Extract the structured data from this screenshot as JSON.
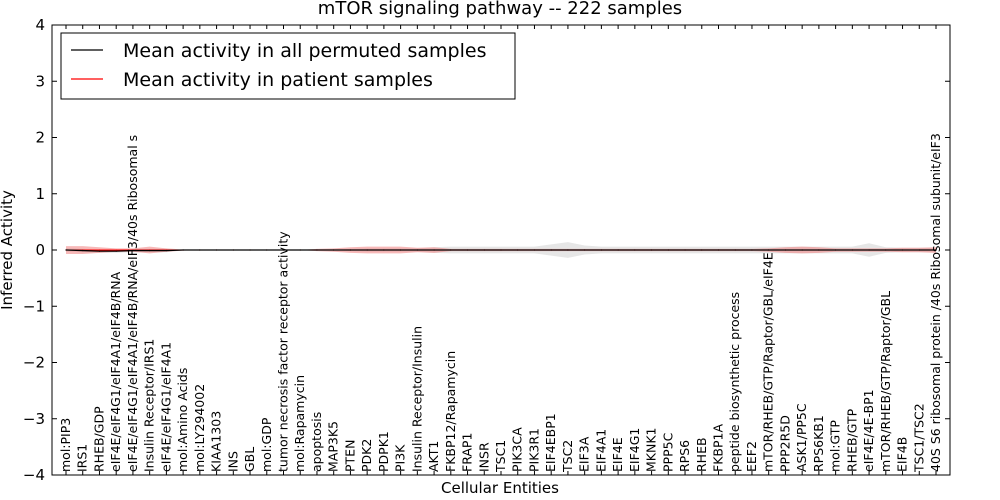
{
  "chart_data": {
    "type": "line",
    "title": "mTOR signaling pathway -- 222 samples",
    "xlabel": "Cellular Entities",
    "ylabel": "Inferred Activity",
    "ylim": [
      -4,
      4
    ],
    "yticks": [
      4,
      3,
      2,
      1,
      0,
      -1,
      -2,
      -3,
      -4
    ],
    "ytick_labels": [
      "4",
      "3",
      "2",
      "1",
      "0",
      "−1",
      "−2",
      "−3",
      "−4"
    ],
    "legend_position": "top-left",
    "colors": {
      "permuted": "#000000",
      "patient": "#ff0000",
      "permuted_band": "#c8c8c8",
      "patient_band": "#f08080"
    },
    "categories": [
      "mol:PIP3",
      "IRS1",
      "RHEB/GDP",
      "eIF4E/eIF4G1/eIF4A1/eIF4B/RNA",
      "eIF4E/eIF4G1/eIF4A1/eIF4B/RNA/eIF3/40s Ribosomal s",
      "Insulin Receptor/IRS1",
      "eIF4E/eIF4G1/eIF4A1",
      "mol:Amino Acids",
      "mol:LY294002",
      "KIAA1303",
      "INS",
      "GBL",
      "mol:GDP",
      "tumor necrosis factor receptor activity",
      "mol:Rapamycin",
      "apoptosis",
      "MAP3K5",
      "PTEN",
      "PDK2",
      "PDPK1",
      "PI3K",
      "Insulin Receptor/Insulin",
      "AKT1",
      "FKBP12/Rapamycin",
      "FRAP1",
      "INSR",
      "TSC1",
      "PIK3CA",
      "PIK3R1",
      "EIF4EBP1",
      "TSC2",
      "EIF3A",
      "EIF4A1",
      "EIF4E",
      "EIF4G1",
      "MKNK1",
      "PPP5C",
      "RPS6",
      "RHEB",
      "FKBP1A",
      "peptide biosynthetic process",
      "EEF2",
      "mTOR/RHEB/GTP/Raptor/GBL/eIF4E",
      "PPP2R5D",
      "ASK1/PP5C",
      "RPS6KB1",
      "mol:GTP",
      "RHEB/GTP",
      "eIF4E/4E-BP1",
      "mTOR/RHEB/GTP/Raptor/GBL",
      "EIF4B",
      "TSC1/TSC2",
      "40S S6 ribosomal protein /40s Ribosomal subunit/eIF3"
    ],
    "series": [
      {
        "name": "Mean activity in all permuted samples",
        "values": [
          0,
          -0.01,
          -0.02,
          -0.02,
          -0.01,
          -0.01,
          -0.01,
          0,
          0,
          0,
          0,
          0,
          0,
          0,
          0,
          0,
          0,
          0,
          0,
          0,
          0,
          0,
          0,
          0,
          0,
          0,
          0,
          0,
          0,
          0,
          0,
          0,
          0,
          0,
          0,
          0,
          0,
          0,
          0,
          0,
          0,
          0,
          0,
          0,
          0,
          0,
          0,
          0,
          0,
          0,
          0,
          0,
          0
        ],
        "band": [
          0.03,
          0.03,
          0.03,
          0.03,
          0.03,
          0.03,
          0.03,
          0,
          0,
          0,
          0,
          0,
          0,
          0,
          0,
          0,
          0,
          0.02,
          0.03,
          0.03,
          0.03,
          0.03,
          0.05,
          0.06,
          0.06,
          0.06,
          0.06,
          0.06,
          0.06,
          0.1,
          0.14,
          0.08,
          0.06,
          0.06,
          0.06,
          0.06,
          0.06,
          0.06,
          0.06,
          0.06,
          0.06,
          0.06,
          0.06,
          0.06,
          0.06,
          0.06,
          0.06,
          0.06,
          0.12,
          0.05,
          0.04,
          0.04,
          0.04
        ]
      },
      {
        "name": "Mean activity in patient samples",
        "values": [
          0,
          0,
          0,
          0,
          0,
          0,
          0,
          0,
          0,
          0,
          0,
          0,
          0,
          0,
          0,
          0,
          0,
          0,
          0,
          0,
          0,
          0,
          0,
          0,
          0,
          0,
          0,
          0,
          0,
          0,
          0,
          0,
          0,
          0,
          0,
          0,
          0,
          0,
          0,
          0,
          0,
          0,
          0,
          0,
          0,
          0,
          0,
          0,
          0,
          0,
          0,
          0,
          0
        ],
        "band": [
          0.07,
          0.07,
          0.05,
          0.03,
          0.03,
          0.06,
          0.03,
          0.01,
          0,
          0,
          0,
          0,
          0,
          0,
          0,
          0.02,
          0.03,
          0.05,
          0.06,
          0.06,
          0.06,
          0.04,
          0.05,
          0.02,
          0.02,
          0.02,
          0.02,
          0.02,
          0.02,
          0.02,
          0.02,
          0.02,
          0.02,
          0.02,
          0.02,
          0.02,
          0.02,
          0.02,
          0.02,
          0.02,
          0.02,
          0.02,
          0.03,
          0.05,
          0.06,
          0.05,
          0.03,
          0.03,
          0.03,
          0.03,
          0.04,
          0.04,
          0.05
        ]
      }
    ]
  }
}
